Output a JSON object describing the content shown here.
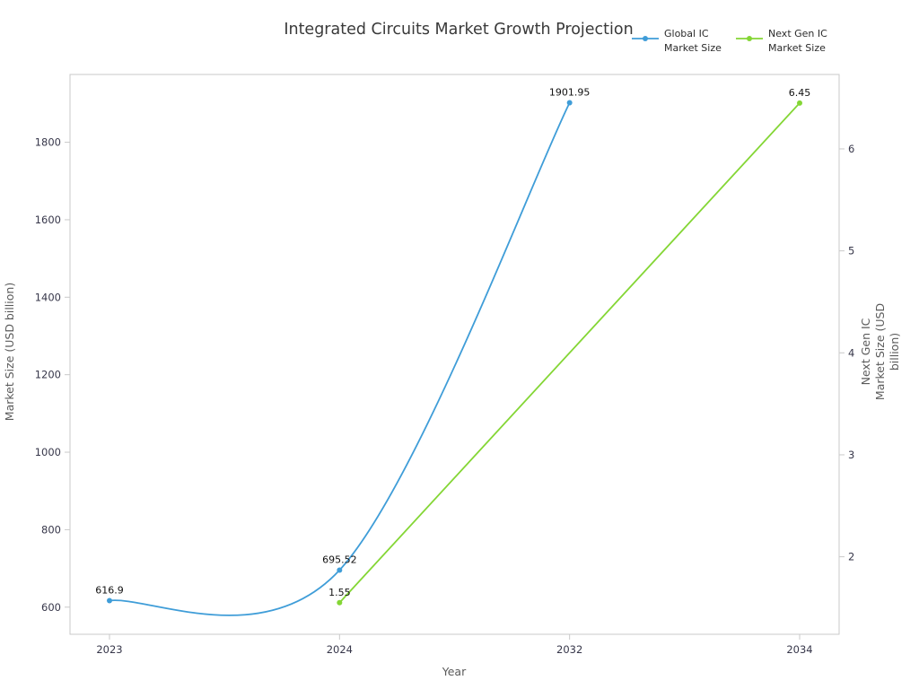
{
  "title": "Integrated Circuits Market Growth Projection",
  "chart_data": {
    "type": "line",
    "title": "Integrated Circuits Market Growth Projection",
    "xlabel": "Year",
    "ylabel": "Market Size (USD billion)",
    "ylabel_right_lines": [
      "Next Gen IC",
      "Market Size (USD",
      "billion)"
    ],
    "categories": [
      "2023",
      "2024",
      "2032",
      "2034"
    ],
    "x_ticks": [
      "2023",
      "2024",
      "2032",
      "2034"
    ],
    "left_axis": {
      "ticks": [
        "600",
        "800",
        "1000",
        "1200",
        "1400",
        "1600",
        "1800"
      ],
      "min": 530,
      "max": 1975
    },
    "right_axis": {
      "ticks": [
        "2",
        "3",
        "4",
        "5",
        "6"
      ],
      "min": 1.24,
      "max": 6.73
    },
    "grid": false,
    "legend_position": "top-right",
    "legend": [
      {
        "label_lines": [
          "Global IC",
          "Market Size"
        ],
        "color": "#3f9dd8"
      },
      {
        "label_lines": [
          "Next Gen IC",
          "Market Size"
        ],
        "color": "#84d635"
      }
    ],
    "series": [
      {
        "name": "Global IC Market Size",
        "axis": "left",
        "color": "#3f9dd8",
        "smooth": true,
        "x": [
          "2023",
          "2024",
          "2032"
        ],
        "values": [
          616.9,
          695.52,
          1901.95
        ],
        "point_labels": [
          "616.9",
          "695.52",
          "1901.95"
        ]
      },
      {
        "name": "Next Gen IC Market Size",
        "axis": "right",
        "color": "#84d635",
        "smooth": false,
        "x": [
          "2024",
          "2034"
        ],
        "values": [
          1.55,
          6.45
        ],
        "point_labels": [
          "1.55",
          "6.45"
        ]
      }
    ]
  }
}
